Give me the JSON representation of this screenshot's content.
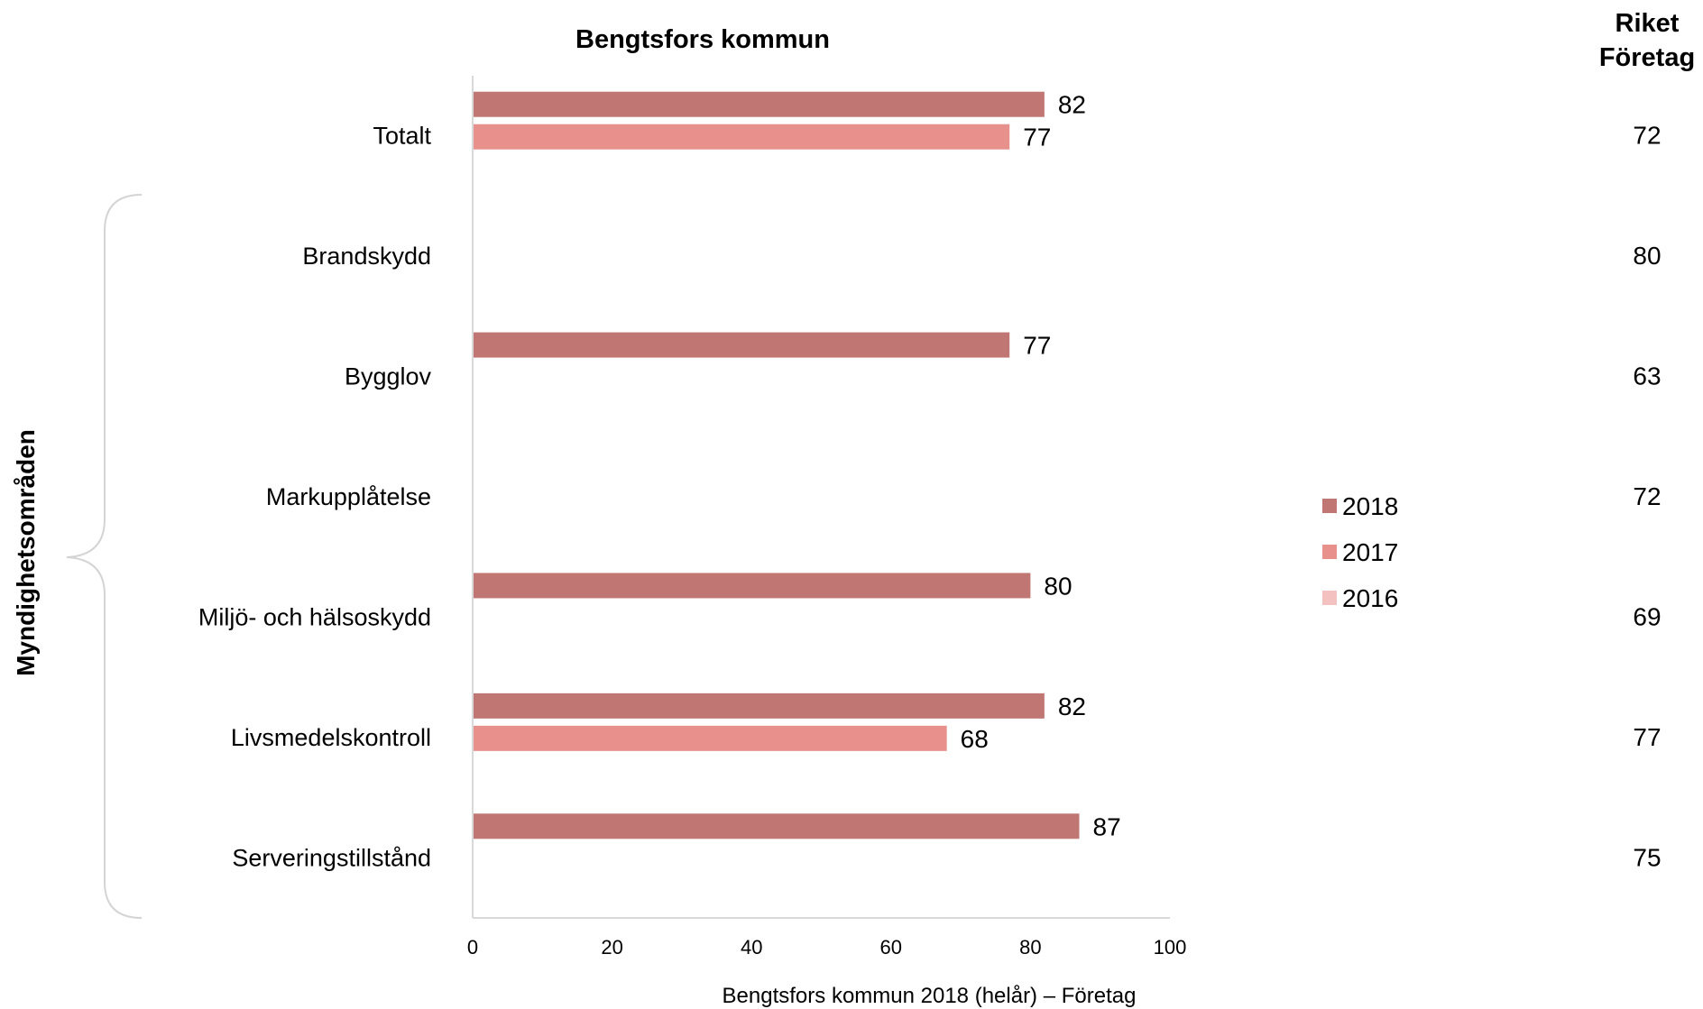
{
  "chart_data": {
    "type": "bar",
    "orientation": "horizontal",
    "title": "Bengtsfors kommun",
    "xlabel": "Bengtsfors kommun 2018 (helår) – Företag",
    "ylabel": "Myndighetsområden",
    "xlim": [
      0,
      100
    ],
    "xticks": [
      "0",
      "20",
      "40",
      "60",
      "80",
      "100"
    ],
    "categories": [
      "Totalt",
      "Brandskydd",
      "Bygglov",
      "Markupplåtelse",
      "Miljö- och hälsoskydd",
      "Livsmedelskontroll",
      "Serveringstillstånd"
    ],
    "series": [
      {
        "name": "2018",
        "color": "#c07672",
        "values": [
          82,
          null,
          77,
          null,
          80,
          82,
          87
        ]
      },
      {
        "name": "2017",
        "color": "#e8918c",
        "values": [
          77,
          null,
          null,
          null,
          null,
          68,
          null
        ]
      },
      {
        "name": "2016",
        "color": "#f2c1c0",
        "values": [
          null,
          null,
          null,
          null,
          null,
          null,
          null
        ]
      }
    ],
    "legend_position": "right",
    "riket": {
      "header_line1": "Riket",
      "header_line2": "Företag",
      "values": [
        "72",
        "80",
        "63",
        "72",
        "69",
        "77",
        "75"
      ]
    },
    "grid": false
  }
}
